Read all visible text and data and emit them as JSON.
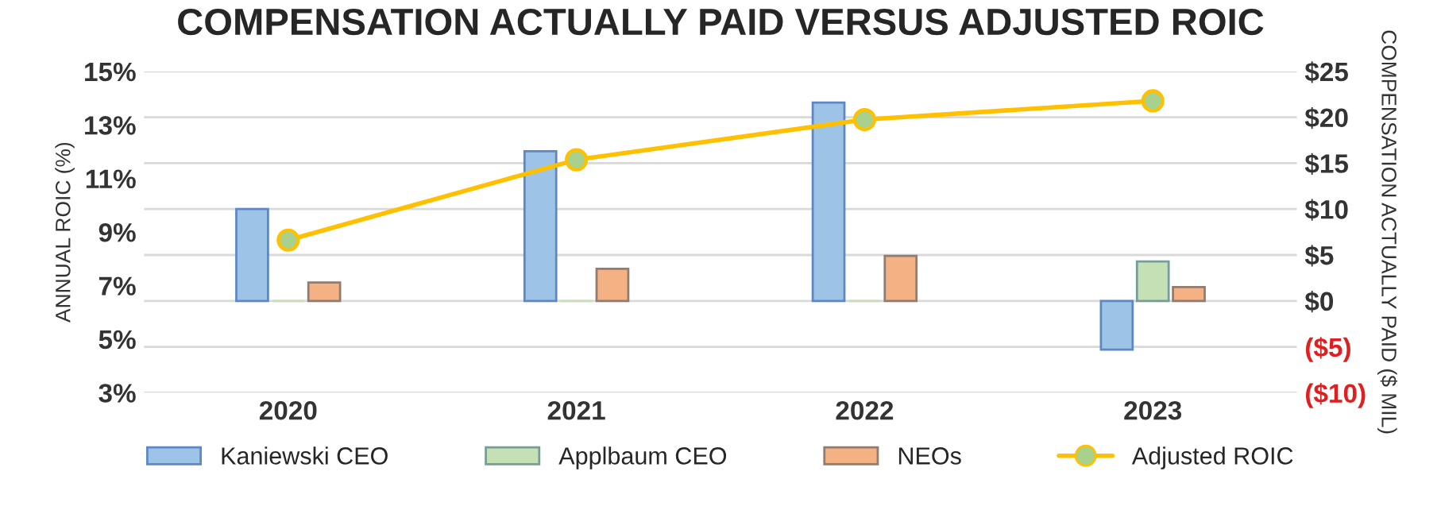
{
  "chart_data": {
    "type": "bar",
    "title": "COMPENSATION ACTUALLY PAID VERSUS ADJUSTED ROIC",
    "ylabel": "ANNUAL ROIC (%)",
    "y2label": "COMPENSATION ACTUALLY PAID ($ MIL)",
    "categories": [
      "2020",
      "2021",
      "2022",
      "2023"
    ],
    "series": [
      {
        "name": "Kaniewski CEO",
        "axis": "y2",
        "color": "#9dc3e6",
        "values": [
          10.0,
          16.3,
          21.6,
          -5.3
        ]
      },
      {
        "name": "Applbaum CEO",
        "axis": "y2",
        "color": "#c5e0b4",
        "values": [
          0,
          0,
          0,
          4.3
        ]
      },
      {
        "name": "NEOs",
        "axis": "y2",
        "color": "#f4b183",
        "values": [
          2.0,
          3.5,
          4.9,
          1.5
        ]
      },
      {
        "name": "Adjusted ROIC",
        "type": "line",
        "axis": "y",
        "color": "#ffc000",
        "marker": "circle",
        "values": [
          8.7,
          11.7,
          13.2,
          13.9
        ]
      }
    ],
    "ylim": [
      3,
      15
    ],
    "yticks": [
      {
        "value": 3,
        "label": "3%"
      },
      {
        "value": 5,
        "label": "5%"
      },
      {
        "value": 7,
        "label": "7%"
      },
      {
        "value": 9,
        "label": "9%"
      },
      {
        "value": 11,
        "label": "11%"
      },
      {
        "value": 13,
        "label": "13%"
      },
      {
        "value": 15,
        "label": "15%"
      }
    ],
    "y2lim": [
      -10,
      25
    ],
    "y2ticks": [
      {
        "value": -10,
        "label": "($10)"
      },
      {
        "value": -5,
        "label": "($5)"
      },
      {
        "value": 0,
        "label": "$0"
      },
      {
        "value": 5,
        "label": "$5"
      },
      {
        "value": 10,
        "label": "$10"
      },
      {
        "value": 15,
        "label": "$15"
      },
      {
        "value": 20,
        "label": "$20"
      },
      {
        "value": 25,
        "label": "$25"
      }
    ],
    "grid": "y",
    "legend": "bottom"
  }
}
